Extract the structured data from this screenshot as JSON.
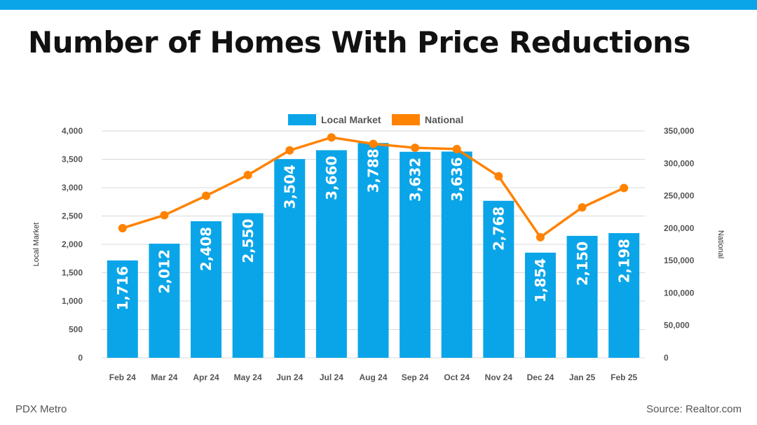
{
  "title": "Number of Homes With Price Reductions",
  "footer": {
    "left": "PDX Metro",
    "right": "Source: Realtor.com"
  },
  "colors": {
    "accent_bar": "#0aa5e8",
    "local": "#0aa5e8",
    "national": "#ff8200",
    "grid": "#d9d9d9"
  },
  "chart_data": {
    "type": "bar",
    "categories": [
      "Feb 24",
      "Mar 24",
      "Apr 24",
      "May 24",
      "Jun 24",
      "Jul 24",
      "Aug 24",
      "Sep 24",
      "Oct 24",
      "Nov 24",
      "Dec 24",
      "Jan 25",
      "Feb 25"
    ],
    "series": [
      {
        "name": "Local Market",
        "type": "bar",
        "axis": "left",
        "values": [
          1716,
          2012,
          2408,
          2550,
          3504,
          3660,
          3788,
          3632,
          3636,
          2768,
          1854,
          2150,
          2198
        ],
        "labels": [
          "1,716",
          "2,012",
          "2,408",
          "2,550",
          "3,504",
          "3,660",
          "3,788",
          "3,632",
          "3,636",
          "2,768",
          "1,854",
          "2,150",
          "2,198"
        ]
      },
      {
        "name": "National",
        "type": "line",
        "axis": "right",
        "values": [
          200000,
          220000,
          250000,
          282000,
          320000,
          340000,
          330000,
          324000,
          322000,
          280000,
          186000,
          232000,
          262000
        ]
      }
    ],
    "ylabel": "Local Market",
    "y2label": "National",
    "ylim": [
      0,
      4000
    ],
    "y2lim": [
      0,
      350000
    ],
    "yticks": [
      "0",
      "500",
      "1,000",
      "1,500",
      "2,000",
      "2,500",
      "3,000",
      "3,500",
      "4,000"
    ],
    "y2ticks": [
      "0",
      "50,000",
      "100,000",
      "150,000",
      "200,000",
      "250,000",
      "300,000",
      "350,000"
    ],
    "legend": "top-center",
    "grid": true
  }
}
